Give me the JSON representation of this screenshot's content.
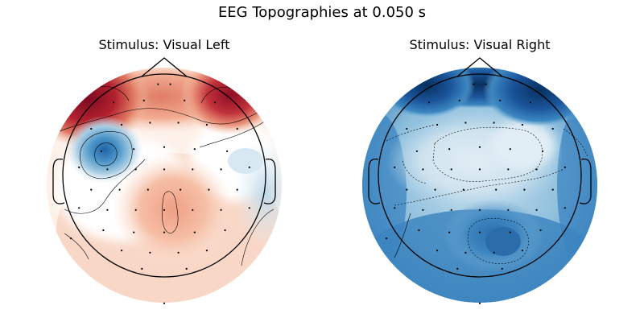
{
  "figure": {
    "title": "EEG Topographies at 0.050 s"
  },
  "chart_data": {
    "type": "heatmap",
    "title": "EEG Topographies at 0.050 s",
    "colormap": "RdBu_r (diverging red-white-blue)",
    "colorbar": false,
    "panels": [
      {
        "title": "Stimulus: Visual Left",
        "regions": [
          {
            "area": "frontal-left",
            "level": 1.0,
            "color": "#8e0d25"
          },
          {
            "area": "frontal-right",
            "level": 0.9,
            "color": "#a51c2f"
          },
          {
            "area": "frontal-mid",
            "level": 0.45,
            "color": "#e8937a"
          },
          {
            "area": "left-central",
            "level": -0.7,
            "color": "#2f78b6"
          },
          {
            "area": "right-parietal",
            "level": 0.3,
            "color": "#f4b49a"
          },
          {
            "area": "posterior-midline",
            "level": 0.2,
            "color": "#f8cbb6"
          },
          {
            "area": "right-temporal",
            "level": -0.15,
            "color": "#d3e6f1"
          }
        ]
      },
      {
        "title": "Stimulus: Visual Right",
        "regions": [
          {
            "area": "frontal-left",
            "level": -1.0,
            "color": "#0b3466"
          },
          {
            "area": "frontal-right",
            "level": -1.0,
            "color": "#0b3466"
          },
          {
            "area": "frontal-mid",
            "level": -0.6,
            "color": "#3b86c0"
          },
          {
            "area": "central",
            "level": -0.2,
            "color": "#d6e8f3"
          },
          {
            "area": "posterior-right",
            "level": -0.7,
            "color": "#2f78b6"
          },
          {
            "area": "periphery",
            "level": -0.5,
            "color": "#4b92c8"
          }
        ]
      }
    ],
    "sensors": [
      [
        -0.06,
        -0.9
      ],
      [
        0.06,
        -0.9
      ],
      [
        -0.5,
        -0.72
      ],
      [
        -0.2,
        -0.74
      ],
      [
        0.2,
        -0.74
      ],
      [
        0.5,
        -0.72
      ],
      [
        -0.72,
        -0.46
      ],
      [
        -0.42,
        -0.5
      ],
      [
        -0.14,
        -0.52
      ],
      [
        0.14,
        -0.52
      ],
      [
        0.42,
        -0.5
      ],
      [
        0.72,
        -0.46
      ],
      [
        -0.62,
        -0.24
      ],
      [
        -0.3,
        -0.26
      ],
      [
        0.0,
        -0.28
      ],
      [
        0.3,
        -0.26
      ],
      [
        0.62,
        -0.24
      ],
      [
        -0.84,
        -0.08
      ],
      [
        -0.56,
        -0.06
      ],
      [
        -0.28,
        -0.06
      ],
      [
        0.0,
        -0.06
      ],
      [
        0.28,
        -0.06
      ],
      [
        0.56,
        -0.06
      ],
      [
        0.84,
        -0.08
      ],
      [
        -0.72,
        0.14
      ],
      [
        -0.44,
        0.14
      ],
      [
        -0.16,
        0.14
      ],
      [
        0.16,
        0.14
      ],
      [
        0.44,
        0.14
      ],
      [
        0.72,
        0.14
      ],
      [
        -0.84,
        0.32
      ],
      [
        -0.56,
        0.34
      ],
      [
        -0.28,
        0.34
      ],
      [
        0.0,
        0.34
      ],
      [
        0.28,
        0.34
      ],
      [
        0.56,
        0.34
      ],
      [
        0.84,
        0.32
      ],
      [
        -0.6,
        0.54
      ],
      [
        -0.3,
        0.56
      ],
      [
        0.0,
        0.56
      ],
      [
        0.3,
        0.56
      ],
      [
        0.6,
        0.54
      ],
      [
        -0.42,
        0.74
      ],
      [
        -0.14,
        0.76
      ],
      [
        0.14,
        0.76
      ],
      [
        0.42,
        0.74
      ],
      [
        -0.22,
        0.92
      ],
      [
        0.22,
        0.92
      ],
      [
        -0.92,
        0.62
      ],
      [
        0.0,
        1.26
      ]
    ]
  }
}
